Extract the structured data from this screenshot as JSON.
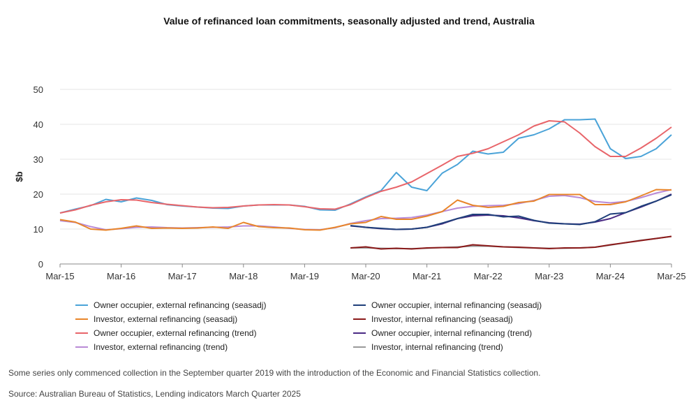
{
  "chart_data": {
    "type": "line",
    "title": "Value of refinanced loan commitments, seasonally adjusted and trend, Australia",
    "ylabel": "$b",
    "xlabel": "",
    "ylim": [
      0,
      50
    ],
    "yticks": [
      0,
      10,
      20,
      30,
      40,
      50
    ],
    "grid": true,
    "legend_position": "bottom",
    "x": [
      "Mar-15",
      "Jun-15",
      "Sep-15",
      "Dec-15",
      "Mar-16",
      "Jun-16",
      "Sep-16",
      "Dec-16",
      "Mar-17",
      "Jun-17",
      "Sep-17",
      "Dec-17",
      "Mar-18",
      "Jun-18",
      "Sep-18",
      "Dec-18",
      "Mar-19",
      "Jun-19",
      "Sep-19",
      "Dec-19",
      "Mar-20",
      "Jun-20",
      "Sep-20",
      "Dec-20",
      "Mar-21",
      "Jun-21",
      "Sep-21",
      "Dec-21",
      "Mar-22",
      "Jun-22",
      "Sep-22",
      "Dec-22",
      "Mar-23",
      "Jun-23",
      "Sep-23",
      "Dec-23",
      "Mar-24",
      "Jun-24",
      "Sep-24",
      "Dec-24",
      "Mar-25"
    ],
    "xtick_labels": [
      "Mar-15",
      "Mar-16",
      "Mar-17",
      "Mar-18",
      "Mar-19",
      "Mar-20",
      "Mar-21",
      "Mar-22",
      "Mar-23",
      "Mar-24",
      "Mar-25"
    ],
    "series": [
      {
        "name": "Owner occupier, external refinancing (seasadj)",
        "color": "#4aa3d8",
        "values": [
          14.6,
          15.7,
          16.7,
          18.5,
          17.8,
          18.9,
          18.2,
          17.0,
          16.6,
          16.3,
          16.0,
          15.9,
          16.6,
          16.9,
          16.9,
          16.9,
          16.5,
          15.5,
          15.4,
          17.2,
          19.2,
          21.0,
          26.2,
          22.0,
          21.0,
          26.0,
          28.5,
          32.3,
          31.5,
          32.0,
          36.0,
          37.0,
          38.7,
          41.3,
          41.3,
          41.5,
          33.0,
          30.2,
          30.8,
          33.0,
          37.0
        ]
      },
      {
        "name": "Owner occupier, internal refinancing (seasadj)",
        "color": "#1f3f7a",
        "values": [
          null,
          null,
          null,
          null,
          null,
          null,
          null,
          null,
          null,
          null,
          null,
          null,
          null,
          null,
          null,
          null,
          null,
          null,
          null,
          11.0,
          10.5,
          10.2,
          9.9,
          10.0,
          10.5,
          11.7,
          13.0,
          14.2,
          14.2,
          13.5,
          13.7,
          12.5,
          11.7,
          11.5,
          11.3,
          12.1,
          14.3,
          14.7,
          16.5,
          18.0,
          19.8
        ]
      },
      {
        "name": "Investor, external refinancing (seasadj)",
        "color": "#e8852a",
        "values": [
          12.7,
          12.0,
          10.0,
          9.7,
          10.2,
          10.9,
          10.2,
          10.3,
          10.2,
          10.3,
          10.6,
          10.2,
          11.9,
          10.7,
          10.4,
          10.3,
          9.8,
          9.7,
          10.5,
          11.5,
          11.9,
          13.6,
          12.8,
          12.8,
          13.7,
          15.0,
          18.3,
          16.8,
          16.2,
          16.5,
          17.6,
          18.0,
          19.9,
          19.9,
          19.9,
          17.0,
          17.0,
          17.8,
          19.5,
          21.3,
          21.2
        ]
      },
      {
        "name": "Investor, internal refinancing (seasadj)",
        "color": "#8b1a1a",
        "values": [
          null,
          null,
          null,
          null,
          null,
          null,
          null,
          null,
          null,
          null,
          null,
          null,
          null,
          null,
          null,
          null,
          null,
          null,
          null,
          4.6,
          4.9,
          4.3,
          4.5,
          4.3,
          4.6,
          4.7,
          4.7,
          5.5,
          5.2,
          4.9,
          4.8,
          4.6,
          4.4,
          4.6,
          4.6,
          4.8,
          5.5,
          6.1,
          6.7,
          7.3,
          7.9
        ]
      },
      {
        "name": "Owner occupier, external refinancing (trend)",
        "color": "#e8656a",
        "values": [
          14.6,
          15.5,
          16.8,
          17.8,
          18.4,
          18.3,
          17.6,
          17.1,
          16.7,
          16.3,
          16.1,
          16.2,
          16.6,
          16.9,
          17.0,
          16.9,
          16.4,
          15.8,
          15.7,
          17.0,
          19.0,
          20.8,
          22.0,
          23.5,
          25.9,
          28.3,
          30.8,
          31.7,
          33.0,
          35.0,
          37.0,
          39.5,
          41.0,
          40.7,
          37.5,
          33.6,
          30.8,
          30.8,
          33.2,
          36.0,
          39.2
        ]
      },
      {
        "name": "Owner occupier, internal refinancing (trend)",
        "color": "#4a2a84",
        "values": [
          null,
          null,
          null,
          null,
          null,
          null,
          null,
          null,
          null,
          null,
          null,
          null,
          null,
          null,
          null,
          null,
          null,
          null,
          null,
          10.9,
          10.5,
          10.1,
          9.9,
          10.0,
          10.5,
          11.5,
          13.0,
          13.8,
          14.0,
          13.8,
          13.2,
          12.4,
          11.8,
          11.5,
          11.4,
          12.0,
          13.0,
          14.7,
          16.3,
          18.0,
          20.0
        ]
      },
      {
        "name": "Investor, external refinancing (trend)",
        "color": "#b98ad6",
        "values": [
          12.4,
          11.9,
          10.7,
          9.8,
          10.1,
          10.5,
          10.6,
          10.4,
          10.3,
          10.4,
          10.5,
          10.6,
          10.9,
          10.9,
          10.6,
          10.2,
          9.9,
          9.8,
          10.4,
          11.6,
          12.4,
          13.0,
          13.1,
          13.3,
          14.0,
          15.0,
          16.0,
          16.5,
          16.7,
          16.8,
          17.3,
          18.2,
          19.4,
          19.6,
          19.0,
          17.9,
          17.5,
          17.9,
          19.0,
          20.3,
          21.3
        ]
      },
      {
        "name": "Investor, internal refinancing (trend)",
        "color": "#9a9a9a",
        "values": [
          null,
          null,
          null,
          null,
          null,
          null,
          null,
          null,
          null,
          null,
          null,
          null,
          null,
          null,
          null,
          null,
          null,
          null,
          null,
          4.6,
          4.6,
          4.5,
          4.4,
          4.4,
          4.5,
          4.7,
          4.9,
          5.1,
          5.1,
          4.9,
          4.7,
          4.6,
          4.5,
          4.5,
          4.6,
          4.8,
          5.4,
          6.1,
          6.8,
          7.3,
          7.9
        ]
      }
    ]
  },
  "legend": [
    "Owner occupier, external refinancing (seasadj)",
    "Owner occupier, internal refinancing (seasadj)",
    "Investor, external refinancing (seasadj)",
    "Investor, internal refinancing (seasadj)",
    "Owner occupier, external refinancing (trend)",
    "Owner occupier, internal refinancing (trend)",
    "Investor, external refinancing (trend)",
    "Investor, internal refinancing (trend)"
  ],
  "notes": {
    "footnote": "Some series only commenced collection in the September quarter 2019 with the introduction of the Economic and Financial Statistics collection.",
    "source": "Source: Australian Bureau of Statistics, Lending indicators March Quarter 2025"
  }
}
